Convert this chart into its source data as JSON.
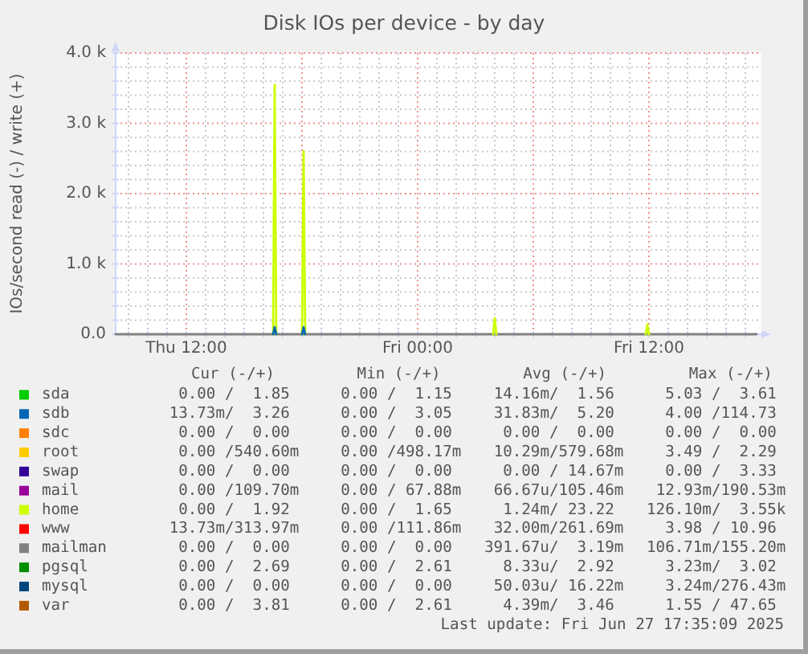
{
  "chart_data": {
    "type": "line",
    "title": "Disk IOs per device - by day",
    "ylabel": "IOs/second read (-) / write (+)",
    "xlim": [
      "2025-06-26T08:20",
      "2025-06-27T17:50"
    ],
    "xticks": [
      {
        "value": "2025-06-26T09:00",
        "label": null
      },
      {
        "value": "2025-06-26T10:00",
        "label": null
      },
      {
        "value": "2025-06-26T11:00",
        "label": null
      },
      {
        "value": "2025-06-26T12:00",
        "label": "Thu 12:00"
      },
      {
        "value": "2025-06-26T13:00",
        "label": null
      },
      {
        "value": "2025-06-26T14:00",
        "label": null
      },
      {
        "value": "2025-06-26T15:00",
        "label": null
      },
      {
        "value": "2025-06-26T16:00",
        "label": null
      },
      {
        "value": "2025-06-26T17:00",
        "label": null
      },
      {
        "value": "2025-06-26T18:00",
        "label": null
      },
      {
        "value": "2025-06-26T19:00",
        "label": null
      },
      {
        "value": "2025-06-26T20:00",
        "label": null
      },
      {
        "value": "2025-06-26T21:00",
        "label": null
      },
      {
        "value": "2025-06-26T22:00",
        "label": null
      },
      {
        "value": "2025-06-26T23:00",
        "label": null
      },
      {
        "value": "2025-06-27T00:00",
        "label": "Fri 00:00"
      },
      {
        "value": "2025-06-27T01:00",
        "label": null
      },
      {
        "value": "2025-06-27T02:00",
        "label": null
      },
      {
        "value": "2025-06-27T03:00",
        "label": null
      },
      {
        "value": "2025-06-27T04:00",
        "label": null
      },
      {
        "value": "2025-06-27T05:00",
        "label": null
      },
      {
        "value": "2025-06-27T06:00",
        "label": null
      },
      {
        "value": "2025-06-27T07:00",
        "label": null
      },
      {
        "value": "2025-06-27T08:00",
        "label": null
      },
      {
        "value": "2025-06-27T09:00",
        "label": null
      },
      {
        "value": "2025-06-27T10:00",
        "label": null
      },
      {
        "value": "2025-06-27T11:00",
        "label": null
      },
      {
        "value": "2025-06-27T12:00",
        "label": "Fri 12:00"
      },
      {
        "value": "2025-06-27T13:00",
        "label": null
      },
      {
        "value": "2025-06-27T14:00",
        "label": null
      },
      {
        "value": "2025-06-27T15:00",
        "label": null
      },
      {
        "value": "2025-06-27T16:00",
        "label": null
      },
      {
        "value": "2025-06-27T17:00",
        "label": null
      }
    ],
    "ylim": [
      0,
      4000
    ],
    "yticks": [
      {
        "value": 0,
        "label": "0.0"
      },
      {
        "value": 200,
        "label": null
      },
      {
        "value": 400,
        "label": null
      },
      {
        "value": 600,
        "label": null
      },
      {
        "value": 800,
        "label": null
      },
      {
        "value": 1000,
        "label": "1.0 k"
      },
      {
        "value": 1200,
        "label": null
      },
      {
        "value": 1400,
        "label": null
      },
      {
        "value": 1600,
        "label": null
      },
      {
        "value": 1800,
        "label": null
      },
      {
        "value": 2000,
        "label": "2.0 k"
      },
      {
        "value": 2200,
        "label": null
      },
      {
        "value": 2400,
        "label": null
      },
      {
        "value": 2600,
        "label": null
      },
      {
        "value": 2800,
        "label": null
      },
      {
        "value": 3000,
        "label": "3.0 k"
      },
      {
        "value": 3200,
        "label": null
      },
      {
        "value": 3400,
        "label": null
      },
      {
        "value": 3600,
        "label": null
      },
      {
        "value": 3800,
        "label": null
      },
      {
        "value": 4000,
        "label": "4.0 k"
      }
    ],
    "grid": true,
    "legend": "bottom",
    "series": [
      {
        "name": "sda",
        "color": "#00cc00"
      },
      {
        "name": "sdb",
        "color": "#0066b3",
        "x": [
          "2025-06-26T16:30",
          "2025-06-26T16:35",
          "2025-06-26T16:40",
          "2025-06-26T17:00",
          "2025-06-26T18:00",
          "2025-06-26T18:05",
          "2025-06-26T18:10"
        ],
        "values": [
          0,
          100,
          0,
          null,
          0,
          100,
          0
        ]
      },
      {
        "name": "sdc",
        "color": "#ff8000"
      },
      {
        "name": "root",
        "color": "#ffcc00"
      },
      {
        "name": "swap",
        "color": "#330099"
      },
      {
        "name": "mail",
        "color": "#990099"
      },
      {
        "name": "home",
        "color": "#ccff00",
        "x": [
          "2025-06-26T16:30",
          "2025-06-26T16:35",
          "2025-06-26T16:40",
          "2025-06-26T17:00",
          "2025-06-26T18:00",
          "2025-06-26T18:05",
          "2025-06-26T18:10",
          "2025-06-27T00:00",
          "2025-06-27T03:55",
          "2025-06-27T04:00",
          "2025-06-27T04:05",
          "2025-06-27T08:00",
          "2025-06-27T11:50",
          "2025-06-27T11:55",
          "2025-06-27T12:00"
        ],
        "values": [
          0,
          3550,
          0,
          null,
          0,
          2600,
          0,
          null,
          0,
          230,
          0,
          null,
          0,
          140,
          0
        ]
      },
      {
        "name": "www",
        "color": "#ff0000"
      },
      {
        "name": "mailman",
        "color": "#808080",
        "x": [
          "2025-06-26T08:20",
          "2025-06-27T17:35"
        ],
        "values": [
          0,
          0
        ]
      },
      {
        "name": "pgsql",
        "color": "#008f00"
      },
      {
        "name": "mysql",
        "color": "#00487d"
      },
      {
        "name": "var",
        "color": "#b35a00"
      }
    ],
    "annotations": [
      "Cur (-/+)",
      "Min (-/+)",
      "Avg (-/+)",
      "Max (-/+)",
      "0.00 /  1.85",
      "0.00 /  1.15",
      "14.16m/  1.56",
      "5.03 /  3.61",
      "13.73m/  3.26",
      "0.00 /  3.05",
      "31.83m/  5.20",
      "4.00 /114.73",
      "0.00 /  0.00",
      "0.00 /  0.00",
      "0.00 /  0.00",
      "0.00 /  0.00",
      "0.00 /540.60m",
      "0.00 /498.17m",
      "10.29m/579.68m",
      "3.49 /  2.29",
      "0.00 /  0.00",
      "0.00 /  0.00",
      "0.00 / 14.67m",
      "0.00 /  3.33",
      "0.00 /109.70m",
      "0.00 / 67.88m",
      "66.67u/105.46m",
      "12.93m/190.53m",
      "0.00 /  1.92",
      "0.00 /  1.65",
      "1.24m/ 23.22",
      "126.10m/  3.55k",
      "13.73m/313.97m",
      "0.00 /111.86m",
      "32.00m/261.69m",
      "3.98 / 10.96",
      "0.00 /  0.00",
      "0.00 /  0.00",
      "391.67u/  3.19m",
      "106.71m/155.20m",
      "0.00 /  2.69",
      "0.00 /  2.61",
      "8.33u/  2.92",
      "3.23m/  3.02",
      "0.00 /  0.00",
      "0.00 /  0.00",
      "50.03u/ 16.22m",
      "3.24m/276.43m",
      "0.00 /  3.81",
      "0.00 /  2.61",
      "4.39m/  3.46",
      "1.55 / 47.65",
      "Last update: Fri Jun 27 17:35:09 2025"
    ]
  }
}
